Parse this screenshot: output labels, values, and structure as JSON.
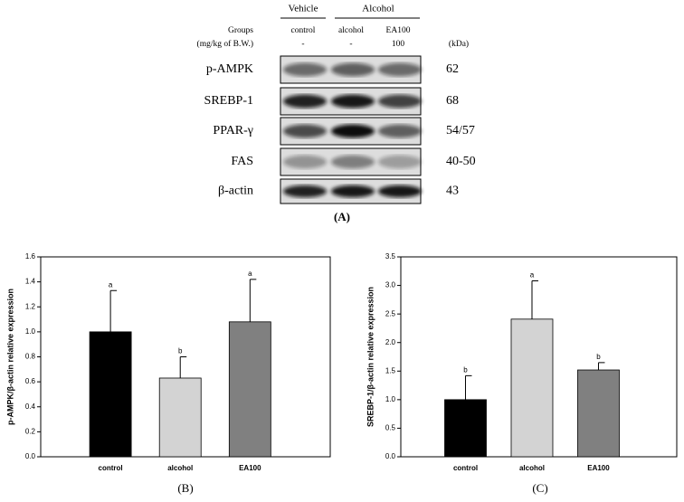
{
  "blot": {
    "groups": [
      {
        "label": "Vehicle"
      },
      {
        "label": "Alcohol"
      }
    ],
    "groups_label": "Groups",
    "dose_label": "(mg/kg of B.W.)",
    "columns": [
      "control",
      "alcohol",
      "EA100"
    ],
    "doses": [
      "-",
      "-",
      "100"
    ],
    "unit_label": "(kDa)",
    "rows": [
      {
        "name": "p-AMPK",
        "kda": "62"
      },
      {
        "name": "SREBP-1",
        "kda": "68"
      },
      {
        "name": "PPAR-γ",
        "kda": "54/57"
      },
      {
        "name": "FAS",
        "kda": "40-50"
      },
      {
        "name": "β-actin",
        "kda": "43"
      }
    ],
    "caption": "(A)"
  },
  "chart_data": [
    {
      "type": "bar",
      "caption": "(B)",
      "y_label": "p-AMPK/β-actin relative expression",
      "categories": [
        "control",
        "alcohol",
        "EA100"
      ],
      "values": [
        1.0,
        0.63,
        1.08
      ],
      "errors": [
        0.33,
        0.17,
        0.34
      ],
      "letters": [
        "a",
        "b",
        "a"
      ],
      "colors": [
        "#000000",
        "#d3d3d3",
        "#808080"
      ],
      "ylim": [
        0,
        1.6
      ],
      "yticks": [
        {
          "value": 0,
          "label": "0.0"
        },
        {
          "value": 0.2,
          "label": "0.2"
        },
        {
          "value": 0.4,
          "label": "0.4"
        },
        {
          "value": 0.6,
          "label": "0.6"
        },
        {
          "value": 0.8,
          "label": "0.8"
        },
        {
          "value": 1,
          "label": "1.0"
        },
        {
          "value": 1.2,
          "label": "1.2"
        },
        {
          "value": 1.4,
          "label": "1.4"
        },
        {
          "value": 1.6,
          "label": "1.6"
        }
      ]
    },
    {
      "type": "bar",
      "caption": "(C)",
      "y_label": "SREBP-1/β-actin relative expression",
      "categories": [
        "control",
        "alcohol",
        "EA100"
      ],
      "values": [
        1.0,
        2.41,
        1.52
      ],
      "errors": [
        0.42,
        0.67,
        0.13
      ],
      "letters": [
        "b",
        "a",
        "b"
      ],
      "colors": [
        "#000000",
        "#d3d3d3",
        "#808080"
      ],
      "ylim": [
        0,
        3.5
      ],
      "yticks": [
        {
          "value": 0,
          "label": "0.0"
        },
        {
          "value": 0.5,
          "label": "0.5"
        },
        {
          "value": 1,
          "label": "1.0"
        },
        {
          "value": 1.5,
          "label": "1.5"
        },
        {
          "value": 2,
          "label": "2.0"
        },
        {
          "value": 2.5,
          "label": "2.5"
        },
        {
          "value": 3,
          "label": "3.0"
        },
        {
          "value": 3.5,
          "label": "3.5"
        }
      ]
    }
  ]
}
